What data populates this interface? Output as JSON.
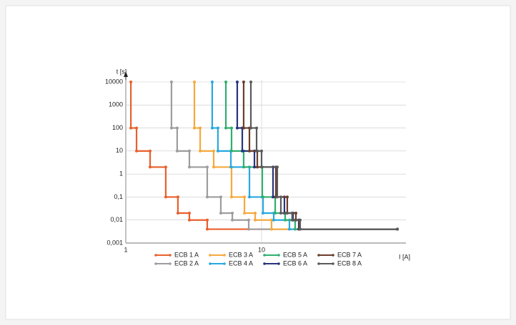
{
  "chart_data": {
    "type": "line",
    "x_label": "I [A]",
    "y_label": "t [s]",
    "xlog": true,
    "ylog": true,
    "grid": true,
    "xlim": [
      1,
      100
    ],
    "xticks": [
      1,
      10
    ],
    "ylim": [
      0.001,
      10000
    ],
    "yticks": [
      {
        "value": 0.001,
        "label": "0,001"
      },
      {
        "value": 0.01,
        "label": "0,01"
      },
      {
        "value": 0.1,
        "label": "0,1"
      },
      1,
      10,
      100,
      1000,
      10000
    ],
    "series": [
      {
        "name": "ECB 1 A",
        "color": "#e8602c",
        "x": [
          1.09,
          1.09,
          1.2,
          1.2,
          1.51,
          1.51,
          1.97,
          1.97,
          2.42,
          2.42,
          2.94,
          2.94,
          3.98,
          3.98,
          100
        ],
        "values": [
          10000,
          100,
          100,
          10,
          10,
          2,
          2,
          0.1,
          0.1,
          0.02,
          0.02,
          0.01,
          0.01,
          0.004,
          0.004
        ]
      },
      {
        "name": "ECB 2 A",
        "color": "#9d9d9d",
        "x": [
          2.17,
          2.17,
          2.39,
          2.39,
          2.94,
          2.94,
          3.98,
          3.98,
          5.01,
          5.01,
          6.09,
          6.09,
          8.04,
          8.04,
          100
        ],
        "values": [
          10000,
          100,
          100,
          10,
          10,
          2,
          2,
          0.1,
          0.1,
          0.02,
          0.02,
          0.01,
          0.01,
          0.004,
          0.004
        ]
      },
      {
        "name": "ECB 3 A",
        "color": "#f5a93d",
        "x": [
          3.2,
          3.2,
          3.53,
          3.53,
          4.44,
          4.44,
          6.01,
          6.01,
          7.48,
          7.48,
          8.97,
          8.97,
          11.85,
          11.85,
          100
        ],
        "values": [
          10000,
          100,
          100,
          10,
          10,
          2,
          2,
          0.1,
          0.1,
          0.02,
          0.02,
          0.01,
          0.01,
          0.004,
          0.004
        ]
      },
      {
        "name": "ECB 4 A",
        "color": "#29a8e0",
        "x": [
          4.33,
          4.33,
          4.77,
          4.77,
          5.94,
          5.94,
          8.14,
          8.14,
          10.25,
          10.25,
          12.29,
          12.29,
          16.04,
          16.04,
          100
        ],
        "values": [
          10000,
          100,
          100,
          10,
          10,
          2,
          2,
          0.1,
          0.1,
          0.02,
          0.02,
          0.01,
          0.01,
          0.004,
          0.004
        ]
      },
      {
        "name": "ECB 5 A",
        "color": "#2eaf6e",
        "x": [
          5.46,
          5.46,
          6.01,
          6.01,
          7.38,
          7.38,
          10.12,
          10.12,
          12.6,
          12.6,
          14.92,
          14.92,
          17.67,
          17.67,
          100
        ],
        "values": [
          10000,
          100,
          100,
          10,
          10,
          2,
          2,
          0.1,
          0.1,
          0.02,
          0.02,
          0.01,
          0.01,
          0.004,
          0.004
        ]
      },
      {
        "name": "ECB 6 A",
        "color": "#27337f",
        "x": [
          6.62,
          6.62,
          7.21,
          7.21,
          8.86,
          8.86,
          12.14,
          12.14,
          14.73,
          14.73,
          17.05,
          17.05,
          18.78,
          18.78,
          100
        ],
        "values": [
          10000,
          100,
          100,
          10,
          10,
          2,
          2,
          0.1,
          0.1,
          0.02,
          0.02,
          0.01,
          0.01,
          0.004,
          0.004
        ]
      },
      {
        "name": "ECB 7 A",
        "color": "#6b3e2a",
        "x": [
          7.38,
          7.38,
          8.14,
          8.14,
          9.3,
          9.3,
          12.74,
          12.74,
          15.46,
          15.46,
          17.9,
          17.9,
          19.0,
          19.0,
          100
        ],
        "values": [
          10000,
          100,
          100,
          10,
          10,
          2,
          2,
          0.1,
          0.1,
          0.02,
          0.02,
          0.01,
          0.01,
          0.004,
          0.004
        ]
      },
      {
        "name": "ECB 8 A",
        "color": "#5a5a5a",
        "x": [
          8.34,
          8.34,
          9.19,
          9.19,
          10.0,
          10.0,
          13.05,
          13.05,
          13.87,
          13.87,
          16.8,
          16.8,
          19.24,
          19.24,
          100
        ],
        "values": [
          10000,
          100,
          100,
          10,
          10,
          2,
          2,
          0.1,
          0.1,
          0.02,
          0.02,
          0.01,
          0.01,
          0.004,
          0.004
        ]
      }
    ]
  }
}
